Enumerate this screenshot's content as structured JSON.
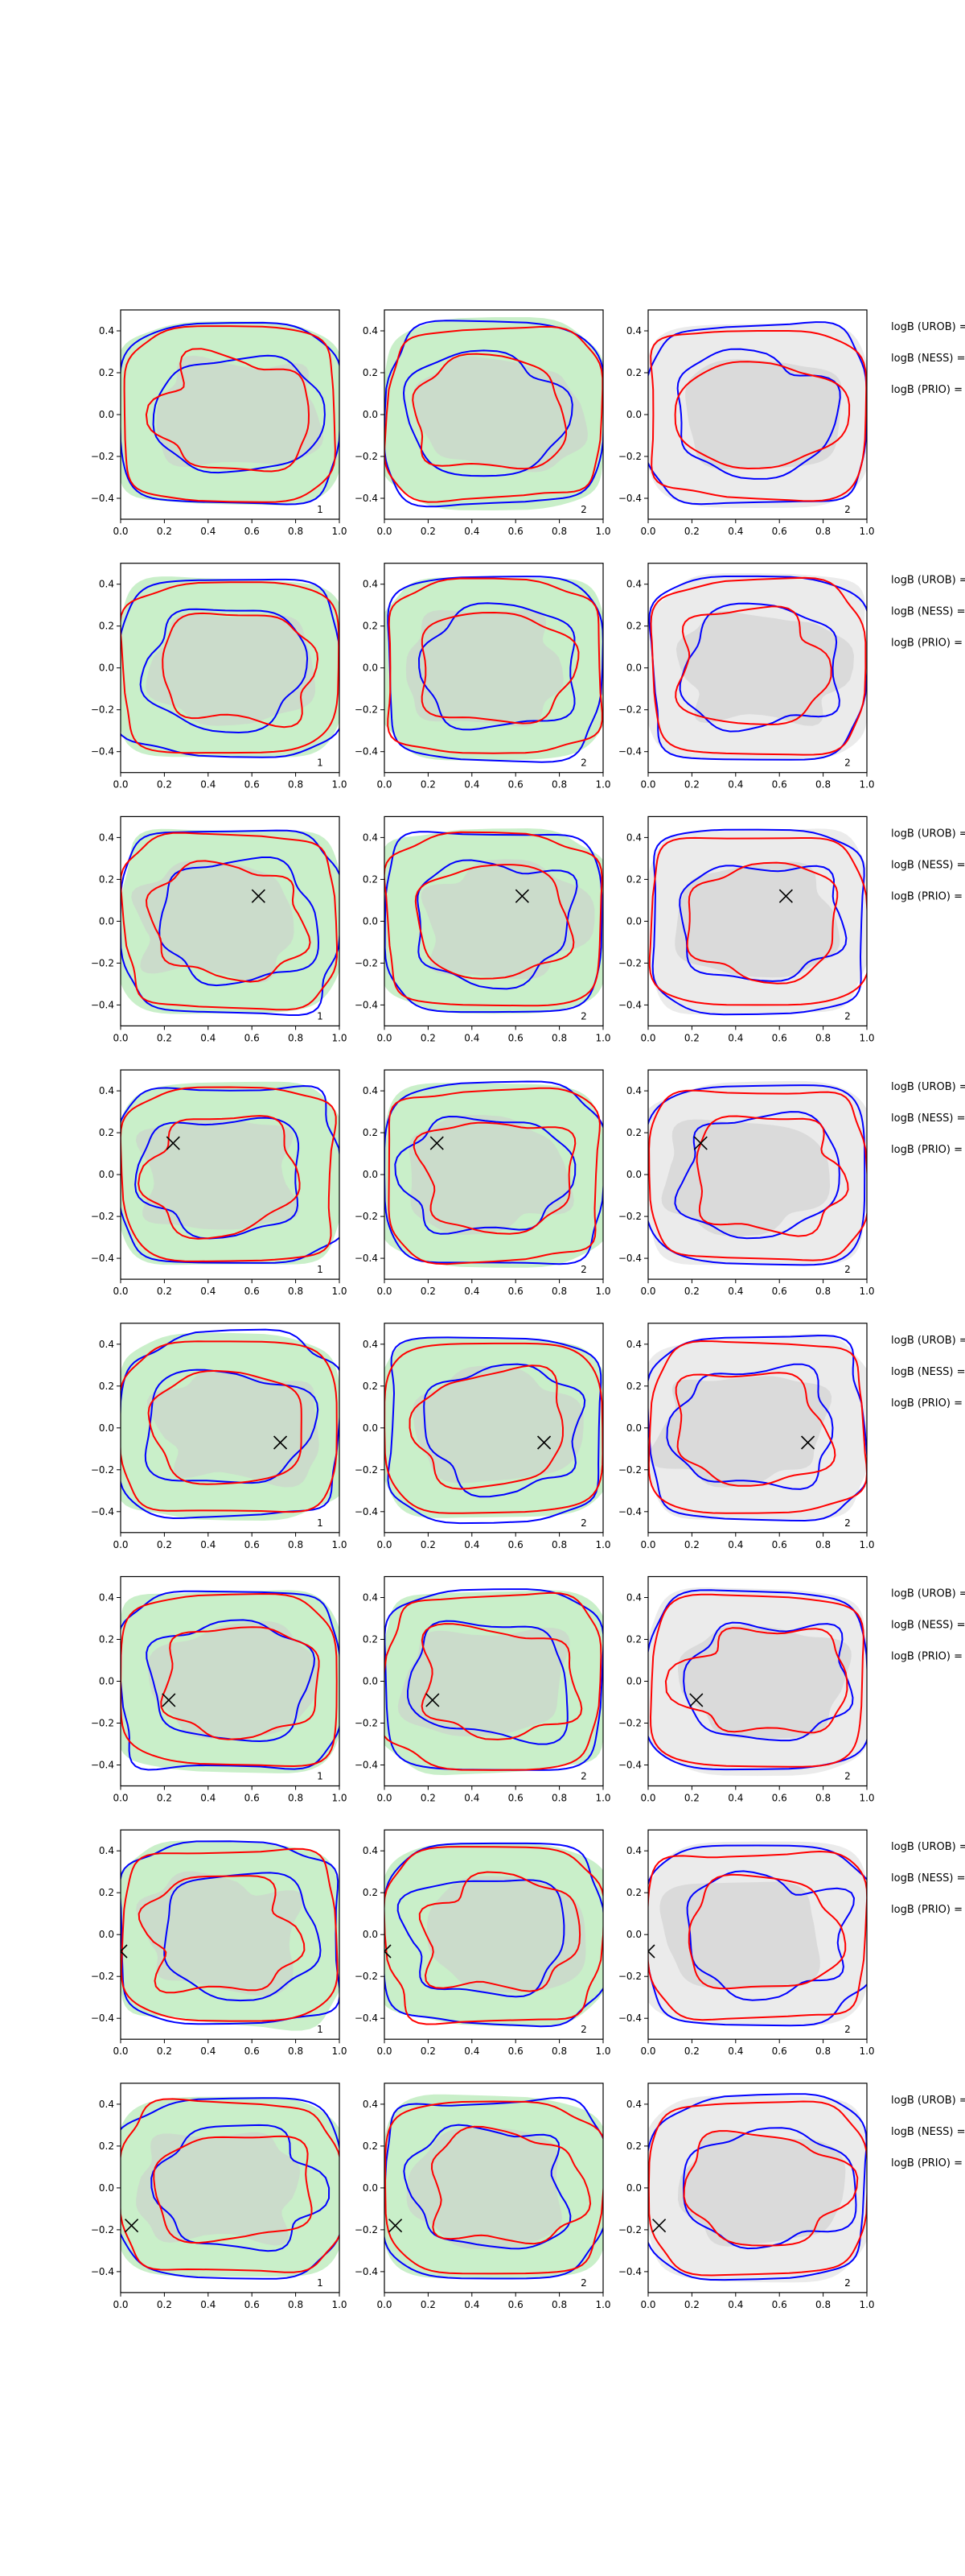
{
  "chart_data": {
    "type": "contour",
    "layout": {
      "rows": 8,
      "cols": 3
    },
    "xlim": [
      0,
      1
    ],
    "ylim": [
      -0.5,
      0.5
    ],
    "xticks": [
      "0.0",
      "0.2",
      "0.4",
      "0.6",
      "0.8",
      "1.0"
    ],
    "yticks": [
      "0.4",
      "0.2",
      "0.0",
      "−0.2",
      "−0.4"
    ],
    "xtick_values": [
      0,
      0.2,
      0.4,
      0.6,
      0.8,
      1.0
    ],
    "ytick_values": [
      0.4,
      0.2,
      0.0,
      -0.2,
      -0.4
    ],
    "column_panel_labels": [
      "1",
      "2",
      "2"
    ],
    "column_fill_colors": [
      "#c9efc9",
      "#c9efc9",
      "#ebebeb"
    ],
    "line_colors": {
      "blue": "#0000ff",
      "red": "#ff0000",
      "gray_fill": "#cccccc"
    },
    "side_labels": [
      "logB (UROB) =",
      "logB (NESS) =",
      "logB (PRIO) ="
    ],
    "markers": [
      null,
      null,
      {
        "x": 0.63,
        "y": 0.12
      },
      {
        "x": 0.24,
        "y": 0.15
      },
      {
        "x": 0.73,
        "y": -0.07
      },
      {
        "x": 0.22,
        "y": -0.09
      },
      {
        "x": 0.0,
        "y": -0.08
      },
      {
        "x": 0.05,
        "y": -0.18
      }
    ]
  }
}
